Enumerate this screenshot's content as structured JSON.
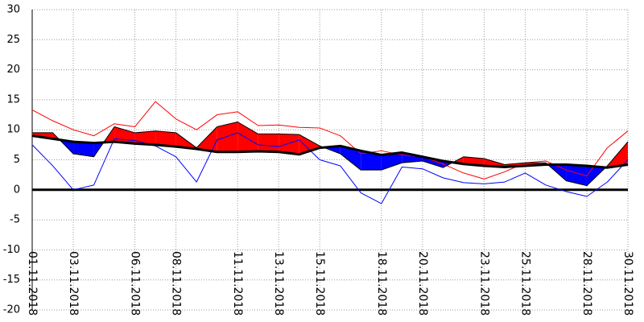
{
  "chart_data": {
    "type": "line",
    "categories": [
      "01.11.2018",
      null,
      "03.11.2018",
      null,
      null,
      "06.11.2018",
      null,
      "08.11.2018",
      null,
      null,
      "11.11.2018",
      null,
      "13.11.2018",
      null,
      "15.11.2018",
      null,
      null,
      "18.11.2018",
      null,
      "20.11.2018",
      null,
      null,
      "23.11.2018",
      null,
      "25.11.2018",
      null,
      null,
      "28.11.2018",
      null,
      "30.11.2018"
    ],
    "series": [
      {
        "color": "#ff0000",
        "width": 1,
        "values": [
          13.3,
          11.5,
          10,
          9,
          11,
          10.5,
          14.7,
          11.8,
          10,
          12.5,
          13,
          10.7,
          10.8,
          10.4,
          10.3,
          9,
          6,
          6.5,
          5.8,
          5.5,
          4.3,
          2.8,
          1.8,
          3,
          4.5,
          4.8,
          3.3,
          2.3,
          7,
          9.8
        ]
      },
      {
        "color": "#0000ff",
        "width": 1,
        "values": [
          7.5,
          4,
          0,
          0.8,
          8.5,
          8.2,
          7.3,
          5.5,
          1.3,
          8.3,
          9.5,
          7.5,
          7.2,
          8.3,
          5,
          4,
          -0.5,
          -2.3,
          3.8,
          3.5,
          2,
          1.2,
          1,
          1.3,
          2.8,
          0.8,
          -0.3,
          -1.1,
          1.3,
          5
        ]
      },
      {
        "color": "#000000",
        "width": 1,
        "values": [
          9.5,
          9.5,
          6,
          5.5,
          10.5,
          9.5,
          9.8,
          9.5,
          7,
          10.5,
          11.3,
          9.3,
          9.3,
          9.2,
          7.3,
          6,
          3.3,
          3.3,
          4.5,
          4.8,
          3.7,
          5.5,
          5.2,
          4.2,
          4.5,
          4.5,
          1.5,
          0.7,
          4,
          8
        ]
      },
      {
        "color": "#000000",
        "width": 3,
        "values": [
          9,
          8.5,
          8,
          7.8,
          8,
          7.7,
          7.5,
          7.2,
          6.8,
          6.3,
          6.3,
          6.4,
          6.3,
          5.9,
          7,
          7.3,
          6.5,
          5.8,
          6.2,
          5.5,
          4.8,
          4.3,
          4,
          3.8,
          4,
          4.2,
          4.2,
          4,
          3.7,
          4.2
        ]
      }
    ],
    "fill_between": [
      2,
      3
    ],
    "above_color": "#ff0000",
    "below_color": "#0000ff",
    "reference_line": 0,
    "ylim": [
      -20,
      30
    ],
    "yticks": [
      -20,
      -15,
      -10,
      -5,
      0,
      5,
      10,
      15,
      20,
      25,
      30
    ],
    "grid": true
  }
}
